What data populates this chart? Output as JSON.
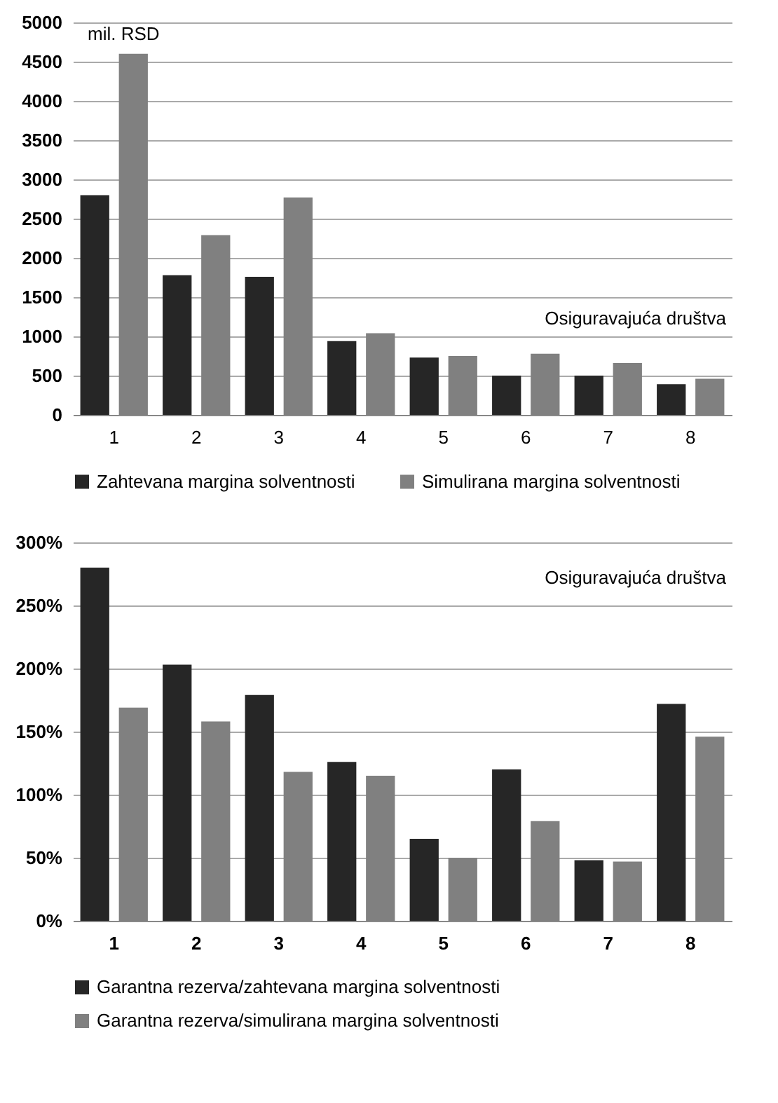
{
  "chart_data": [
    {
      "type": "bar",
      "ylabel": "mil. RSD",
      "xlabel": "Osiguravajuća društva",
      "categories": [
        "1",
        "2",
        "3",
        "4",
        "5",
        "6",
        "7",
        "8"
      ],
      "series": [
        {
          "name": "Zahtevana margina solventnosti",
          "color": "#262626",
          "values": [
            2800,
            1780,
            1760,
            940,
            730,
            500,
            500,
            390
          ]
        },
        {
          "name": "Simulirana margina solventnosti",
          "color": "#808080",
          "values": [
            4600,
            2290,
            2770,
            1040,
            750,
            780,
            660,
            460
          ]
        }
      ],
      "ylim": [
        0,
        5000
      ],
      "yticks": [
        0,
        500,
        1000,
        1500,
        2000,
        2500,
        3000,
        3500,
        4000,
        4500,
        5000
      ],
      "grid": "y",
      "legend": "bottom"
    },
    {
      "type": "bar",
      "xlabel": "Osiguravajuća društva",
      "categories": [
        "1",
        "2",
        "3",
        "4",
        "5",
        "6",
        "7",
        "8"
      ],
      "series": [
        {
          "name": "Garantna rezerva/zahtevana margina solventnosti",
          "color": "#262626",
          "values": [
            280,
            203,
            179,
            126,
            65,
            120,
            48,
            172
          ]
        },
        {
          "name": "Garantna rezerva/simulirana margina solventnosti",
          "color": "#808080",
          "values": [
            169,
            158,
            118,
            115,
            50,
            79,
            47,
            146
          ]
        }
      ],
      "ylim": [
        0,
        300
      ],
      "yticks": [
        {
          "value": 0,
          "label": "0%"
        },
        {
          "value": 50,
          "label": "50%"
        },
        {
          "value": 100,
          "label": "100%"
        },
        {
          "value": 150,
          "label": "150%"
        },
        {
          "value": 200,
          "label": "200%"
        },
        {
          "value": 250,
          "label": "250%"
        },
        {
          "value": 300,
          "label": "300%"
        }
      ],
      "grid": "y",
      "legend": "bottom"
    }
  ]
}
